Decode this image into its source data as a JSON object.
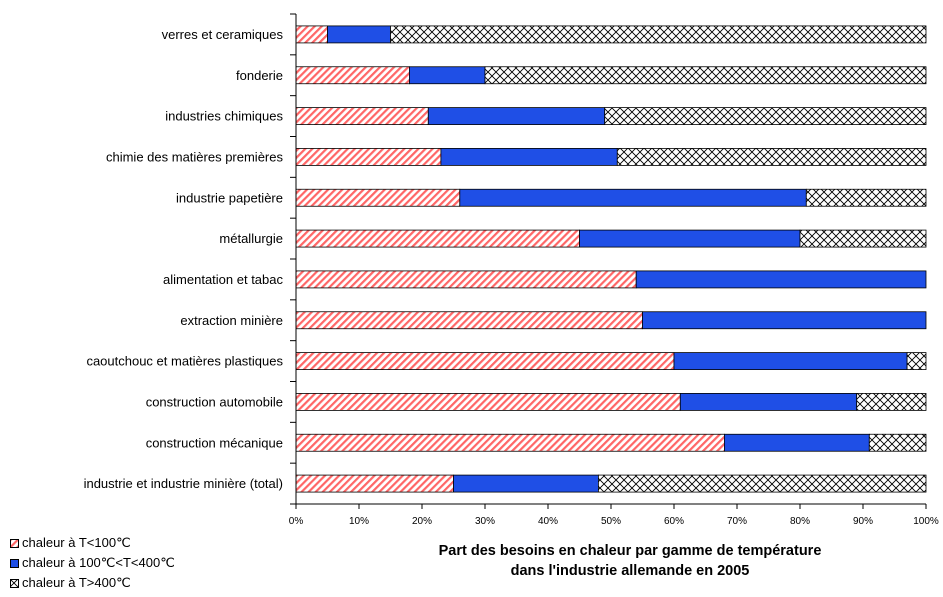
{
  "chart_data": {
    "type": "bar",
    "orientation": "horizontal",
    "stacked": true,
    "title_lines": [
      "Part des besoins en chaleur par gamme de température",
      "dans l'industrie allemande en 2005"
    ],
    "categories": [
      "verres et ceramiques",
      "fonderie",
      "industries chimiques",
      "chimie des matières premières",
      "industrie papetière",
      "métallurgie",
      "alimentation et tabac",
      "extraction minière",
      "caoutchouc et matières plastiques",
      "construction automobile",
      "construction mécanique",
      "industrie et industrie minière (total)"
    ],
    "series": [
      {
        "name": "chaleur à T<100℃",
        "color": "#ff6666",
        "pattern": "diagonal-hatch",
        "values": [
          5,
          18,
          21,
          23,
          26,
          45,
          54,
          55,
          60,
          61,
          68,
          25
        ]
      },
      {
        "name": "chaleur à 100℃<T<400℃",
        "color": "#1f4fe6",
        "pattern": "solid",
        "values": [
          10,
          12,
          28,
          28,
          55,
          35,
          46,
          45,
          37,
          28,
          23,
          23
        ]
      },
      {
        "name": "chaleur à T>400℃",
        "color": "#000000",
        "pattern": "cross-hatch",
        "values": [
          85,
          70,
          51,
          49,
          19,
          20,
          0,
          0,
          3,
          11,
          9,
          52
        ]
      }
    ],
    "x_ticks": [
      "0%",
      "10%",
      "20%",
      "30%",
      "40%",
      "50%",
      "60%",
      "70%",
      "80%",
      "90%",
      "100%"
    ],
    "xlim": [
      0,
      100
    ],
    "grid": false,
    "legend_position": "bottom-left"
  }
}
